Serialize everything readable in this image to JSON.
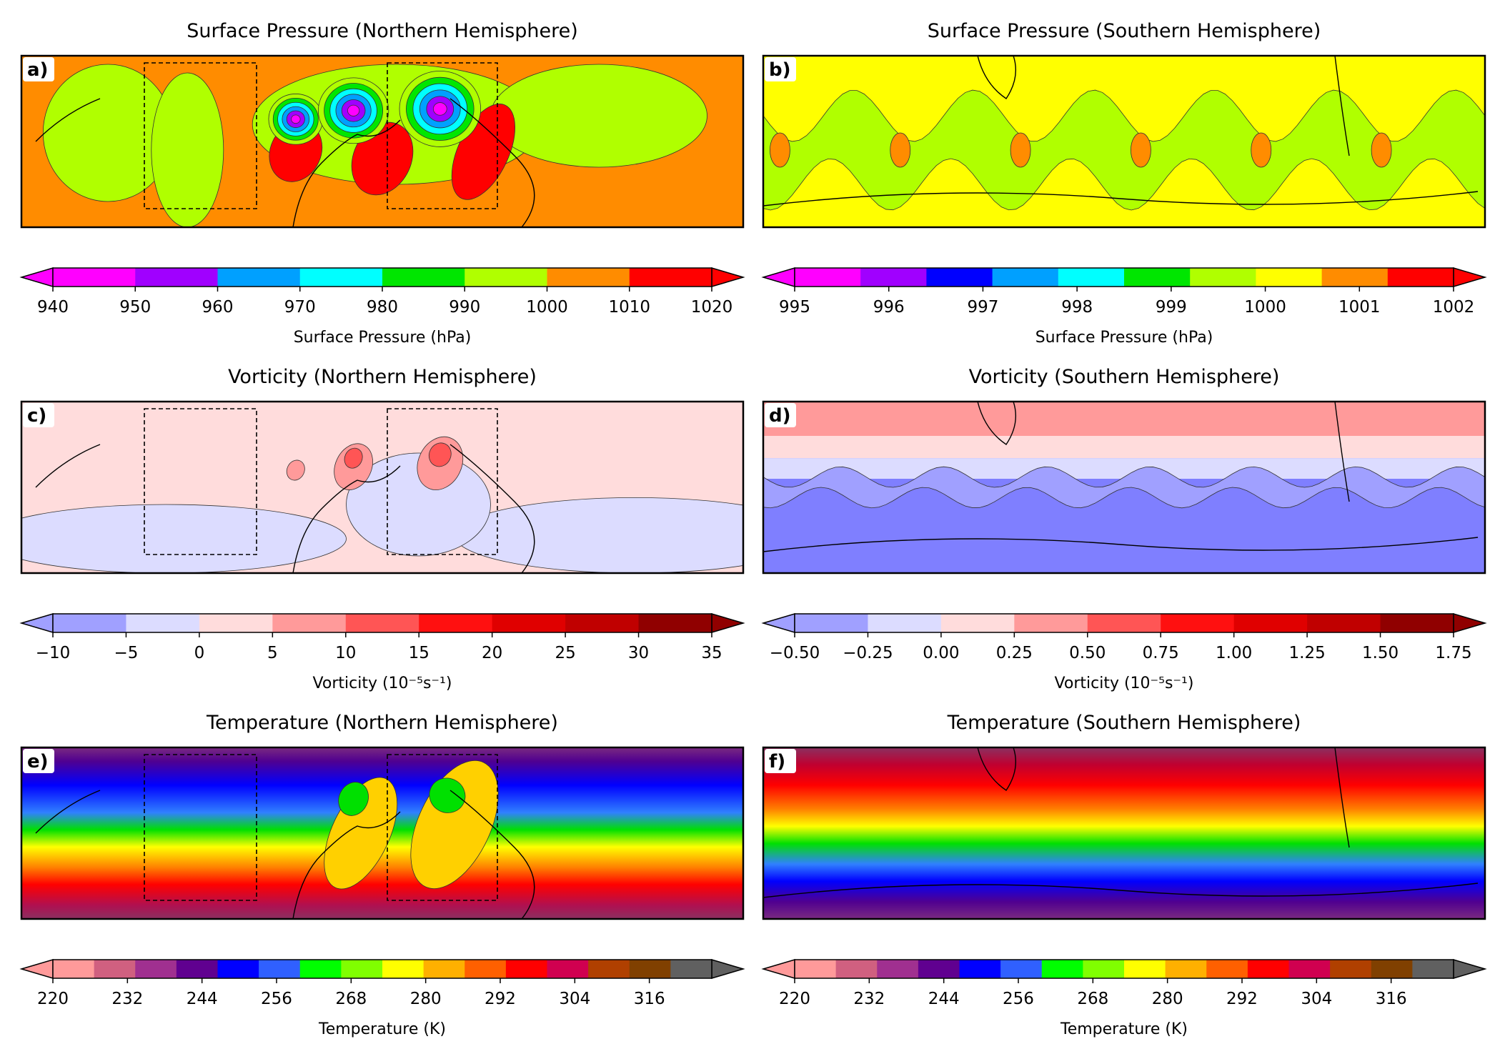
{
  "chart_data": [
    {
      "type": "heatmap",
      "panel_label": "a)",
      "title": "Surface Pressure (Northern Hemisphere)",
      "colorbar_label": "Surface Pressure (hPa)",
      "colorbar_ticks": [
        "940",
        "950",
        "960",
        "970",
        "980",
        "990",
        "1000",
        "1010",
        "1020"
      ],
      "colorbar_ticks_dense": false,
      "colorbar_colors": [
        "#ff00ff",
        "#a000ff",
        "#00a0ff",
        "#00ffff",
        "#00e600",
        "#b0ff00",
        "#ff8c00",
        "#ff0000"
      ],
      "background": "#ff8c00",
      "has_boxes": true,
      "features": [
        {
          "kind": "band",
          "cx": 0.12,
          "cy": 0.45,
          "rx": 0.09,
          "ry": 0.4,
          "color": "#b0ff00"
        },
        {
          "kind": "band",
          "cx": 0.23,
          "cy": 0.55,
          "rx": 0.05,
          "ry": 0.45,
          "color": "#b0ff00"
        },
        {
          "kind": "band",
          "cx": 0.52,
          "cy": 0.4,
          "rx": 0.2,
          "ry": 0.35,
          "color": "#b0ff00"
        },
        {
          "kind": "band",
          "cx": 0.8,
          "cy": 0.35,
          "rx": 0.15,
          "ry": 0.3,
          "color": "#b0ff00"
        },
        {
          "kind": "blob",
          "cx": 0.38,
          "cy": 0.56,
          "rx": 0.035,
          "ry": 0.18,
          "color": "#ff0000"
        },
        {
          "kind": "blob",
          "cx": 0.5,
          "cy": 0.6,
          "rx": 0.04,
          "ry": 0.22,
          "color": "#ff0000"
        },
        {
          "kind": "blob",
          "cx": 0.64,
          "cy": 0.56,
          "rx": 0.035,
          "ry": 0.3,
          "color": "#ff0000"
        },
        {
          "kind": "low",
          "cx": 0.38,
          "cy": 0.37,
          "r": 0.05
        },
        {
          "kind": "low",
          "cx": 0.46,
          "cy": 0.32,
          "r": 0.065
        },
        {
          "kind": "low",
          "cx": 0.58,
          "cy": 0.31,
          "r": 0.075
        }
      ]
    },
    {
      "type": "heatmap",
      "panel_label": "b)",
      "title": "Surface Pressure (Southern Hemisphere)",
      "colorbar_label": "Surface Pressure (hPa)",
      "colorbar_ticks": [
        "995",
        "996",
        "997",
        "998",
        "999",
        "1000",
        "1001",
        "1002"
      ],
      "colorbar_ticks_dense": false,
      "colorbar_colors": [
        "#ff00ff",
        "#a000ff",
        "#0000ff",
        "#00a0ff",
        "#00ffff",
        "#00e600",
        "#b0ff00",
        "#ffff00",
        "#ff8c00",
        "#ff0000"
      ],
      "background": "#ffff00",
      "has_boxes": false,
      "features": [
        {
          "kind": "wave",
          "cy": 0.55,
          "amp": 0.15,
          "thick": 0.4,
          "count": 6,
          "color": "#b0ff00"
        },
        {
          "kind": "spots",
          "cy": 0.55,
          "count": 6,
          "color": "#ff8c00"
        }
      ]
    },
    {
      "type": "heatmap",
      "panel_label": "c)",
      "title": "Vorticity (Northern Hemisphere)",
      "colorbar_label": "Vorticity (10⁻⁵s⁻¹)",
      "colorbar_ticks": [
        "−10",
        "−5",
        "0",
        "5",
        "10",
        "15",
        "20",
        "25",
        "30",
        "35"
      ],
      "colorbar_ticks_dense": false,
      "colorbar_colors": [
        "#a0a0ff",
        "#dcdcff",
        "#ffdcdc",
        "#ff9a9a",
        "#ff5555",
        "#ff1010",
        "#e00000",
        "#c00000",
        "#900000"
      ],
      "background": "#ffdcdc",
      "has_boxes": true,
      "features": [
        {
          "kind": "band",
          "cx": 0.2,
          "cy": 0.8,
          "rx": 0.25,
          "ry": 0.2,
          "color": "#dcdcff"
        },
        {
          "kind": "band",
          "cx": 0.85,
          "cy": 0.78,
          "rx": 0.25,
          "ry": 0.22,
          "color": "#dcdcff"
        },
        {
          "kind": "band",
          "cx": 0.55,
          "cy": 0.6,
          "rx": 0.1,
          "ry": 0.3,
          "color": "#dcdcff"
        },
        {
          "kind": "blob",
          "cx": 0.38,
          "cy": 0.4,
          "rx": 0.012,
          "ry": 0.06,
          "color": "#ff9a9a"
        },
        {
          "kind": "blob",
          "cx": 0.46,
          "cy": 0.38,
          "rx": 0.025,
          "ry": 0.14,
          "color": "#ff9a9a"
        },
        {
          "kind": "blob",
          "cx": 0.46,
          "cy": 0.33,
          "rx": 0.012,
          "ry": 0.06,
          "color": "#ff5555"
        },
        {
          "kind": "blob",
          "cx": 0.58,
          "cy": 0.36,
          "rx": 0.03,
          "ry": 0.16,
          "color": "#ff9a9a"
        },
        {
          "kind": "blob",
          "cx": 0.58,
          "cy": 0.31,
          "rx": 0.015,
          "ry": 0.07,
          "color": "#ff5555"
        }
      ]
    },
    {
      "type": "heatmap",
      "panel_label": "d)",
      "title": "Vorticity (Southern Hemisphere)",
      "colorbar_label": "Vorticity (10⁻⁵s⁻¹)",
      "colorbar_ticks": [
        "−0.50",
        "−0.25",
        "0.00",
        "0.25",
        "0.50",
        "0.75",
        "1.00",
        "1.25",
        "1.50",
        "1.75"
      ],
      "colorbar_ticks_dense": false,
      "colorbar_colors": [
        "#a0a0ff",
        "#dcdcff",
        "#ffdcdc",
        "#ff9a9a",
        "#ff5555",
        "#ff1010",
        "#e00000",
        "#c00000",
        "#900000"
      ],
      "background": "#7f7fff",
      "has_boxes": false,
      "features": [
        {
          "kind": "stripe",
          "y0": 0.0,
          "y1": 0.2,
          "color": "#ff9a9a"
        },
        {
          "kind": "stripe",
          "y0": 0.2,
          "y1": 0.33,
          "color": "#ffdcdc"
        },
        {
          "kind": "stripe",
          "y0": 0.33,
          "y1": 0.45,
          "color": "#dcdcff"
        },
        {
          "kind": "wave",
          "cy": 0.5,
          "amp": 0.06,
          "thick": 0.12,
          "count": 7,
          "color": "#a0a0ff"
        }
      ]
    },
    {
      "type": "heatmap",
      "panel_label": "e)",
      "title": "Temperature (Northern Hemisphere)",
      "colorbar_label": "Temperature (K)",
      "colorbar_ticks": [
        "220",
        "232",
        "244",
        "256",
        "268",
        "280",
        "292",
        "304",
        "316"
      ],
      "colorbar_ticks_dense": true,
      "colorbar_colors": [
        "#ff9a9a",
        "#d06080",
        "#a03090",
        "#600090",
        "#0000ff",
        "#3060ff",
        "#00ff00",
        "#80ff00",
        "#ffff00",
        "#ffb000",
        "#ff6000",
        "#ff0000",
        "#d00050",
        "#b04000",
        "#804000",
        "#606060"
      ],
      "background": "#ff0000",
      "has_boxes": true,
      "gradient": [
        {
          "off": 0.0,
          "color": "#7a2a80"
        },
        {
          "off": 0.08,
          "color": "#500090"
        },
        {
          "off": 0.22,
          "color": "#0000ff"
        },
        {
          "off": 0.38,
          "color": "#3080ff"
        },
        {
          "off": 0.48,
          "color": "#00e000"
        },
        {
          "off": 0.58,
          "color": "#ffff00"
        },
        {
          "off": 0.7,
          "color": "#ff8000"
        },
        {
          "off": 0.8,
          "color": "#ff0000"
        },
        {
          "off": 0.92,
          "color": "#b01050"
        },
        {
          "off": 1.0,
          "color": "#8a3060"
        }
      ],
      "features": [
        {
          "kind": "blob",
          "cx": 0.47,
          "cy": 0.5,
          "rx": 0.04,
          "ry": 0.35,
          "color": "#ffd000"
        },
        {
          "kind": "blob",
          "cx": 0.6,
          "cy": 0.45,
          "rx": 0.05,
          "ry": 0.4,
          "color": "#ffd000"
        },
        {
          "kind": "blob",
          "cx": 0.46,
          "cy": 0.3,
          "rx": 0.02,
          "ry": 0.1,
          "color": "#00e000"
        },
        {
          "kind": "blob",
          "cx": 0.59,
          "cy": 0.28,
          "rx": 0.025,
          "ry": 0.1,
          "color": "#00e000"
        }
      ]
    },
    {
      "type": "heatmap",
      "panel_label": "f)",
      "title": "Temperature (Southern Hemisphere)",
      "colorbar_label": "Temperature (K)",
      "colorbar_ticks": [
        "220",
        "232",
        "244",
        "256",
        "268",
        "280",
        "292",
        "304",
        "316"
      ],
      "colorbar_ticks_dense": true,
      "colorbar_colors": [
        "#ff9a9a",
        "#d06080",
        "#a03090",
        "#600090",
        "#0000ff",
        "#3060ff",
        "#00ff00",
        "#80ff00",
        "#ffff00",
        "#ffb000",
        "#ff6000",
        "#ff0000",
        "#d00050",
        "#b04000",
        "#804000",
        "#606060"
      ],
      "background": "#ff0000",
      "has_boxes": false,
      "gradient": [
        {
          "off": 0.0,
          "color": "#8a3060"
        },
        {
          "off": 0.1,
          "color": "#c00030"
        },
        {
          "off": 0.22,
          "color": "#ff0000"
        },
        {
          "off": 0.36,
          "color": "#ff8000"
        },
        {
          "off": 0.46,
          "color": "#ffff00"
        },
        {
          "off": 0.56,
          "color": "#00e000"
        },
        {
          "off": 0.68,
          "color": "#3080ff"
        },
        {
          "off": 0.78,
          "color": "#0000ff"
        },
        {
          "off": 0.9,
          "color": "#500090"
        },
        {
          "off": 1.0,
          "color": "#7a2a80"
        }
      ],
      "features": []
    }
  ]
}
